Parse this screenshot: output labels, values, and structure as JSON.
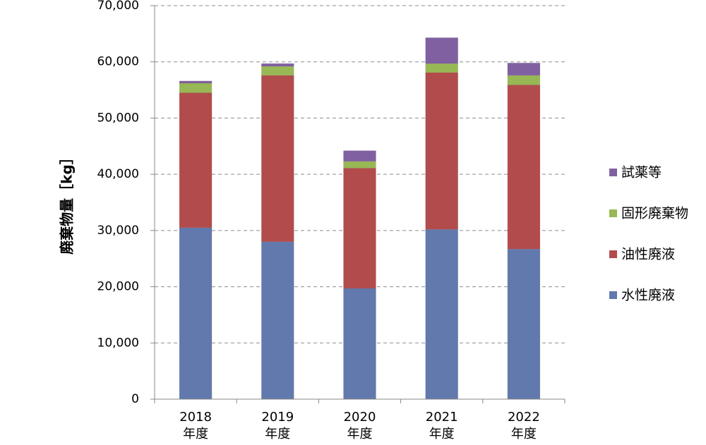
{
  "chart_data": {
    "type": "bar",
    "stacked": true,
    "categories": [
      [
        "2018",
        "年度"
      ],
      [
        "2019",
        "年度"
      ],
      [
        "2020",
        "年度"
      ],
      [
        "2021",
        "年度"
      ],
      [
        "2022",
        "年度"
      ]
    ],
    "ylabel": "廃棄物量［kg］",
    "ylim": [
      0,
      70000
    ],
    "yticks": [
      0,
      10000,
      20000,
      30000,
      40000,
      50000,
      60000,
      70000
    ],
    "ytick_labels": [
      "0",
      "10,000",
      "20,000",
      "30,000",
      "40,000",
      "50,000",
      "60,000",
      "70,000"
    ],
    "grid": true,
    "legend_position": "right",
    "series": [
      {
        "name": "水性廃液",
        "color": "#6279ad",
        "values": [
          30500,
          28000,
          19700,
          30200,
          26700
        ]
      },
      {
        "name": "油性廃液",
        "color": "#b24c4c",
        "values": [
          24000,
          29600,
          21400,
          27900,
          29200
        ]
      },
      {
        "name": "固形廃棄物",
        "color": "#97b854",
        "values": [
          1700,
          1600,
          1200,
          1600,
          1700
        ]
      },
      {
        "name": "試薬等",
        "color": "#8060a1",
        "values": [
          400,
          500,
          1900,
          4600,
          2200
        ]
      }
    ]
  }
}
